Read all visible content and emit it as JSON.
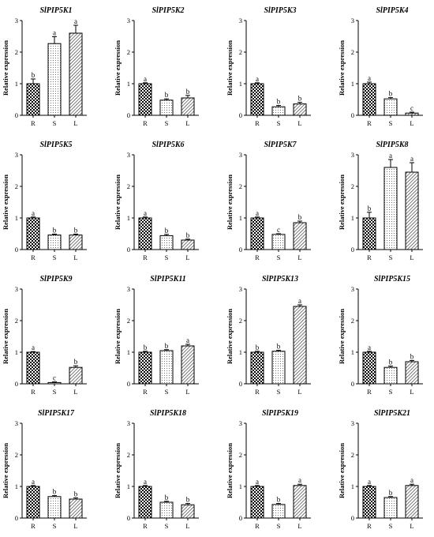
{
  "chart_data": [
    {
      "type": "bar",
      "title": "SlPIP5K1",
      "ylabel": "Relative expression",
      "categories": [
        "R",
        "S",
        "L"
      ],
      "values": [
        1.0,
        2.27,
        2.6
      ],
      "errors": [
        0.15,
        0.22,
        0.25
      ],
      "letters": [
        "b",
        "a",
        "a"
      ],
      "ylim": [
        0,
        3
      ],
      "yticks": [
        "0",
        "1",
        "2",
        "3"
      ]
    },
    {
      "type": "bar",
      "title": "SlPIP5K2",
      "ylabel": "Relative expression",
      "categories": [
        "R",
        "S",
        "L"
      ],
      "values": [
        1.0,
        0.48,
        0.55
      ],
      "errors": [
        0.03,
        0.04,
        0.08
      ],
      "letters": [
        "a",
        "b",
        "b"
      ],
      "ylim": [
        0,
        3
      ],
      "yticks": [
        "0",
        "1",
        "2",
        "3"
      ]
    },
    {
      "type": "bar",
      "title": "SlPIP5K3",
      "ylabel": "Relative expression",
      "categories": [
        "R",
        "S",
        "L"
      ],
      "values": [
        1.0,
        0.27,
        0.36
      ],
      "errors": [
        0.03,
        0.04,
        0.05
      ],
      "letters": [
        "a",
        "b",
        "b"
      ],
      "ylim": [
        0,
        3
      ],
      "yticks": [
        "0",
        "1",
        "2",
        "3"
      ]
    },
    {
      "type": "bar",
      "title": "SlPIP5K4",
      "ylabel": "Relative expression",
      "categories": [
        "R",
        "S",
        "L"
      ],
      "values": [
        1.0,
        0.52,
        0.07
      ],
      "errors": [
        0.05,
        0.04,
        0.03
      ],
      "letters": [
        "a",
        "b",
        "c"
      ],
      "ylim": [
        0,
        3
      ],
      "yticks": [
        "0",
        "1",
        "2",
        "3"
      ]
    },
    {
      "type": "bar",
      "title": "SlPIP5K5",
      "ylabel": "Relative expression",
      "categories": [
        "R",
        "S",
        "L"
      ],
      "values": [
        1.0,
        0.46,
        0.46
      ],
      "errors": [
        0.03,
        0.03,
        0.03
      ],
      "letters": [
        "a",
        "b",
        "b"
      ],
      "ylim": [
        0,
        3
      ],
      "yticks": [
        "0",
        "1",
        "2",
        "3"
      ]
    },
    {
      "type": "bar",
      "title": "SlPIP5K6",
      "ylabel": "Relative expression",
      "categories": [
        "R",
        "S",
        "L"
      ],
      "values": [
        1.0,
        0.44,
        0.3
      ],
      "errors": [
        0.03,
        0.04,
        0.03
      ],
      "letters": [
        "a",
        "b",
        "b"
      ],
      "ylim": [
        0,
        3
      ],
      "yticks": [
        "0",
        "1",
        "2",
        "3"
      ]
    },
    {
      "type": "bar",
      "title": "SlPIP5K7",
      "ylabel": "Relative expression",
      "categories": [
        "R",
        "S",
        "L"
      ],
      "values": [
        1.0,
        0.48,
        0.85
      ],
      "errors": [
        0.03,
        0.02,
        0.05
      ],
      "letters": [
        "a",
        "c",
        "b"
      ],
      "ylim": [
        0,
        3
      ],
      "yticks": [
        "0",
        "1",
        "2",
        "3"
      ]
    },
    {
      "type": "bar",
      "title": "SlPIP5K8",
      "ylabel": "Relative expression",
      "categories": [
        "R",
        "S",
        "L"
      ],
      "values": [
        1.0,
        2.6,
        2.45
      ],
      "errors": [
        0.18,
        0.25,
        0.3
      ],
      "letters": [
        "b",
        "a",
        "a"
      ],
      "ylim": [
        0,
        3
      ],
      "yticks": [
        "0",
        "1",
        "2",
        "3"
      ]
    },
    {
      "type": "bar",
      "title": "SlPIP5K9",
      "ylabel": "Relative expression",
      "categories": [
        "R",
        "S",
        "L"
      ],
      "values": [
        1.0,
        0.04,
        0.52
      ],
      "errors": [
        0.02,
        0.02,
        0.05
      ],
      "letters": [
        "a",
        "c",
        "b"
      ],
      "ylim": [
        0,
        3
      ],
      "yticks": [
        "0",
        "1",
        "2",
        "3"
      ]
    },
    {
      "type": "bar",
      "title": "SlPIP5K11",
      "ylabel": "Relative expression",
      "categories": [
        "R",
        "S",
        "L"
      ],
      "values": [
        1.0,
        1.05,
        1.2
      ],
      "errors": [
        0.03,
        0.03,
        0.05
      ],
      "letters": [
        "b",
        "b",
        "a"
      ],
      "ylim": [
        0,
        3
      ],
      "yticks": [
        "0",
        "1",
        "2",
        "3"
      ]
    },
    {
      "type": "bar",
      "title": "SlPIP5K13",
      "ylabel": "Relative expression",
      "categories": [
        "R",
        "S",
        "L"
      ],
      "values": [
        1.0,
        1.03,
        2.45
      ],
      "errors": [
        0.03,
        0.03,
        0.05
      ],
      "letters": [
        "b",
        "b",
        "a"
      ],
      "ylim": [
        0,
        3
      ],
      "yticks": [
        "0",
        "1",
        "2",
        "3"
      ]
    },
    {
      "type": "bar",
      "title": "SlPIP5K15",
      "ylabel": "Relative expression",
      "categories": [
        "R",
        "S",
        "L"
      ],
      "values": [
        1.0,
        0.52,
        0.7
      ],
      "errors": [
        0.03,
        0.04,
        0.04
      ],
      "letters": [
        "a",
        "b",
        "b"
      ],
      "ylim": [
        0,
        3
      ],
      "yticks": [
        "0",
        "1",
        "2",
        "3"
      ]
    },
    {
      "type": "bar",
      "title": "SlPIP5K17",
      "ylabel": "Relative expression",
      "categories": [
        "R",
        "S",
        "L"
      ],
      "values": [
        1.0,
        0.68,
        0.6
      ],
      "errors": [
        0.03,
        0.03,
        0.04
      ],
      "letters": [
        "a",
        "b",
        "b"
      ],
      "ylim": [
        0,
        3
      ],
      "yticks": [
        "0",
        "1",
        "2",
        "3"
      ]
    },
    {
      "type": "bar",
      "title": "SlPIP5K18",
      "ylabel": "Relative expression",
      "categories": [
        "R",
        "S",
        "L"
      ],
      "values": [
        1.0,
        0.5,
        0.42
      ],
      "errors": [
        0.03,
        0.03,
        0.04
      ],
      "letters": [
        "a",
        "b",
        "b"
      ],
      "ylim": [
        0,
        3
      ],
      "yticks": [
        "0",
        "1",
        "2",
        "3"
      ]
    },
    {
      "type": "bar",
      "title": "SlPIP5K19",
      "ylabel": "Relative expression",
      "categories": [
        "R",
        "S",
        "L"
      ],
      "values": [
        1.0,
        0.43,
        1.03
      ],
      "errors": [
        0.03,
        0.03,
        0.04
      ],
      "letters": [
        "a",
        "b",
        "a"
      ],
      "ylim": [
        0,
        3
      ],
      "yticks": [
        "0",
        "1",
        "2",
        "3"
      ]
    },
    {
      "type": "bar",
      "title": "SlPIP5K21",
      "ylabel": "Relative expression",
      "categories": [
        "R",
        "S",
        "L"
      ],
      "values": [
        1.0,
        0.65,
        1.03
      ],
      "errors": [
        0.03,
        0.03,
        0.04
      ],
      "letters": [
        "a",
        "b",
        "a"
      ],
      "ylim": [
        0,
        3
      ],
      "yticks": [
        "0",
        "1",
        "2",
        "3"
      ]
    }
  ],
  "style": {
    "bar_patterns": [
      "checker",
      "dots",
      "diagonal"
    ],
    "bar_fill": "#ffffff",
    "ink": "#000000"
  }
}
